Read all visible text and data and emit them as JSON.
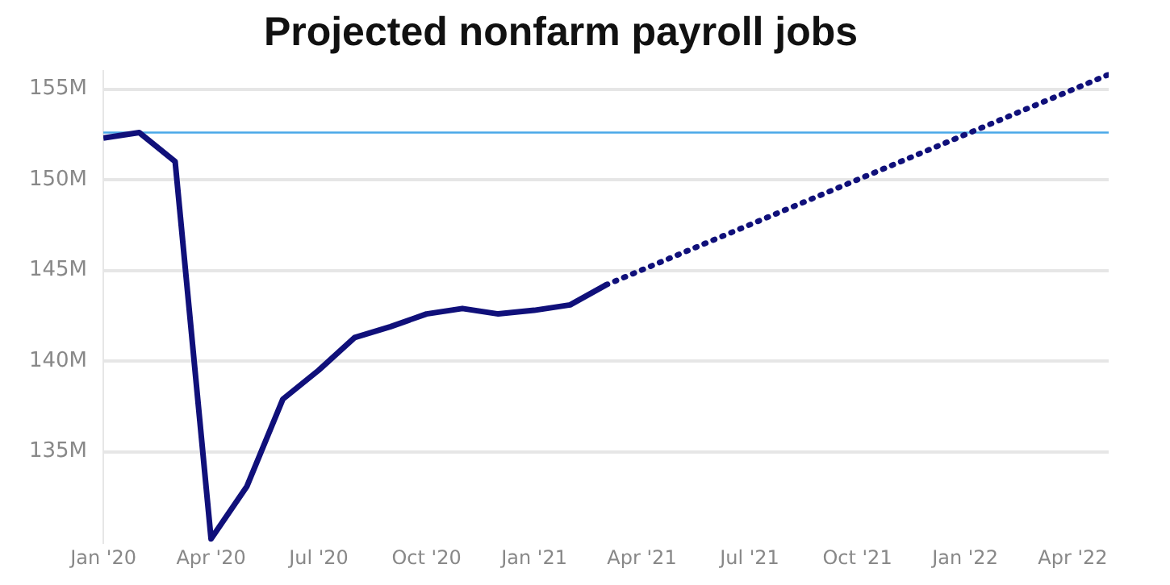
{
  "chart_data": {
    "type": "line",
    "title": "Projected nonfarm payroll jobs",
    "series": [
      {
        "color": "#10107a",
        "line_style": "solid",
        "x": [
          "2020-01",
          "2020-02",
          "2020-03",
          "2020-04",
          "2020-05",
          "2020-06",
          "2020-07",
          "2020-08",
          "2020-09",
          "2020-10",
          "2020-11",
          "2020-12",
          "2021-01",
          "2021-02",
          "2021-03"
        ],
        "values": [
          152.3,
          152.6,
          151.0,
          130.2,
          133.1,
          137.9,
          139.5,
          141.3,
          141.9,
          142.6,
          142.9,
          142.6,
          142.8,
          143.1,
          144.2
        ]
      },
      {
        "color": "#10107a",
        "line_style": "dotted",
        "x": [
          "2021-03",
          "2022-05"
        ],
        "values": [
          144.2,
          155.8
        ]
      }
    ],
    "ref_lines": [
      {
        "axis": "y",
        "value": 152.6,
        "color": "#4aa8e8"
      }
    ],
    "xlim": [
      "2020-01",
      "2022-05"
    ],
    "xticks": [
      {
        "value": "2020-01",
        "label": "Jan '20"
      },
      {
        "value": "2020-04",
        "label": "Apr '20"
      },
      {
        "value": "2020-07",
        "label": "Jul '20"
      },
      {
        "value": "2020-10",
        "label": "Oct '20"
      },
      {
        "value": "2021-01",
        "label": "Jan '21"
      },
      {
        "value": "2021-04",
        "label": "Apr '21"
      },
      {
        "value": "2021-07",
        "label": "Jul '21"
      },
      {
        "value": "2021-10",
        "label": "Oct '21"
      },
      {
        "value": "2022-01",
        "label": "Jan '22"
      },
      {
        "value": "2022-04",
        "label": "Apr '22"
      }
    ],
    "ylim": [
      130,
      156
    ],
    "yticks": [
      {
        "value": 135,
        "label": "135M"
      },
      {
        "value": 140,
        "label": "140M"
      },
      {
        "value": 145,
        "label": "145M"
      },
      {
        "value": 150,
        "label": "150M"
      },
      {
        "value": 155,
        "label": "155M"
      }
    ],
    "grid": "y",
    "legend": false,
    "marker": "none"
  }
}
